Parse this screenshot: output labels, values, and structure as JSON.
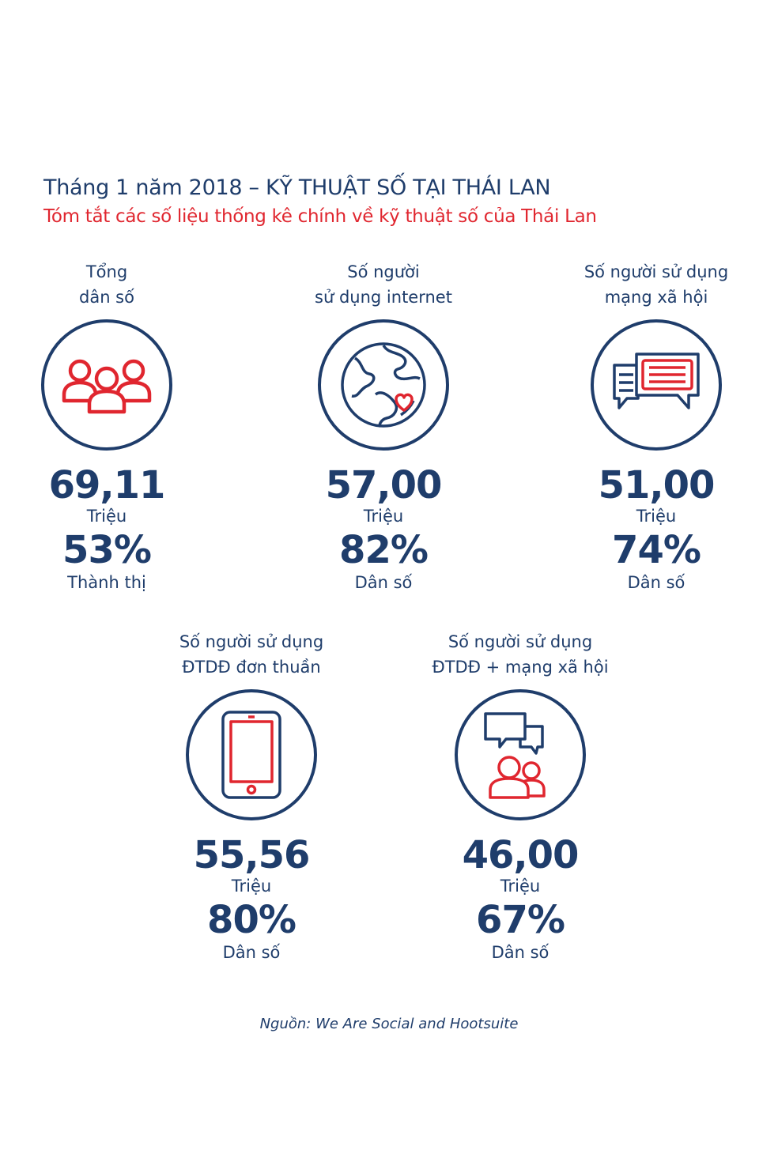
{
  "title": "Tháng 1 năm 2018 – KỸ THUẬT SỐ TẠI THÁI LAN",
  "subtitle": "Tóm tắt các số liệu thống kê chính về kỹ thuật số của Thái Lan",
  "colors": {
    "navy": "#1f3d6b",
    "red": "#e0262f"
  },
  "stats": [
    {
      "label": "Tổng\ndân số",
      "icon": "people-group-icon",
      "value": "69,11",
      "unit": "Triệu",
      "pct": "53%",
      "pct_label": "Thành thị"
    },
    {
      "label": "Số người\nsử dụng internet",
      "icon": "globe-heart-icon",
      "value": "57,00",
      "unit": "Triệu",
      "pct": "82%",
      "pct_label": "Dân số"
    },
    {
      "label": "Số người sử dụng\nmạng xã hội",
      "icon": "chat-bubbles-icon",
      "value": "51,00",
      "unit": "Triệu",
      "pct": "74%",
      "pct_label": "Dân số"
    },
    {
      "label": "Số người sử dụng\nĐTDĐ đơn thuần",
      "icon": "mobile-phone-icon",
      "value": "55,56",
      "unit": "Triệu",
      "pct": "80%",
      "pct_label": "Dân số"
    },
    {
      "label": "Số người sử dụng\nĐTDĐ + mạng xã hội",
      "icon": "people-chat-icon",
      "value": "46,00",
      "unit": "Triệu",
      "pct": "67%",
      "pct_label": "Dân số"
    }
  ],
  "source": "Nguồn: We Are Social and Hootsuite"
}
